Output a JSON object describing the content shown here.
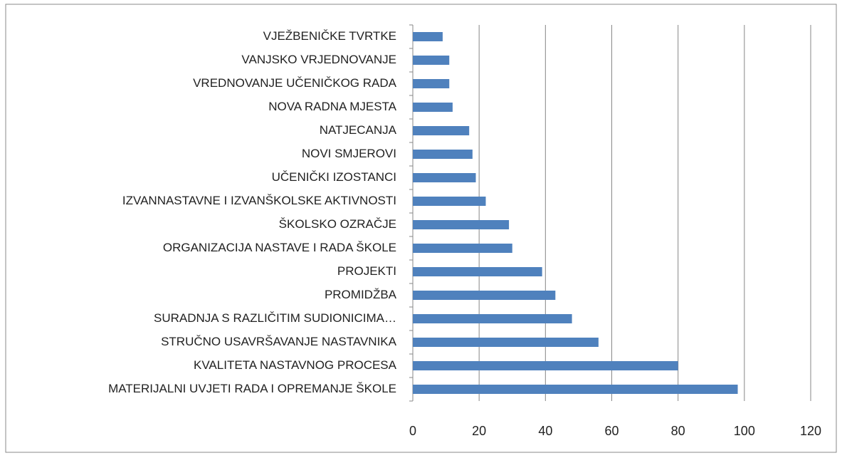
{
  "chart_data": {
    "type": "bar",
    "orientation": "horizontal",
    "categories": [
      "VJEŽBENIČKE TVRTKE",
      "VANJSKO VRJEDNOVANJE",
      "VREDNOVANJE UČENIČKOG RADA",
      "NOVA RADNA MJESTA",
      "NATJECANJA",
      "NOVI SMJEROVI",
      "UČENIČKI IZOSTANCI",
      "IZVANNASTAVNE I IZVANŠKOLSKE AKTIVNOSTI",
      "ŠKOLSKO OZRAČJE",
      "ORGANIZACIJA NASTAVE I RADA ŠKOLE",
      "PROJEKTI",
      "PROMIDŽBA",
      "SURADNJA S RAZLIČITIM SUDIONICIMA…",
      "STRUČNO USAVRŠAVANJE NASTAVNIKA",
      "KVALITETA NASTAVNOG PROCESA",
      "MATERIJALNI UVJETI RADA I OPREMANJE ŠKOLE"
    ],
    "values": [
      9,
      11,
      11,
      12,
      17,
      18,
      19,
      22,
      29,
      30,
      39,
      43,
      48,
      56,
      80,
      98
    ],
    "color": "#4f81bd",
    "xlim": [
      0,
      120
    ],
    "xticks": [
      0,
      20,
      40,
      60,
      80,
      100,
      120
    ],
    "grid": true
  }
}
